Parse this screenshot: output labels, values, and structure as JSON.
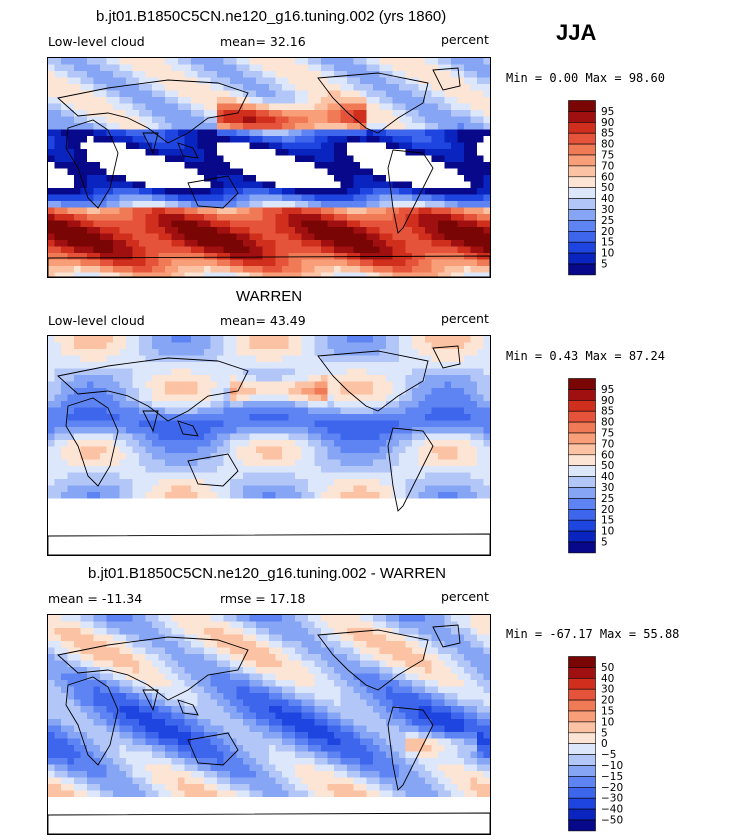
{
  "season": "JJA",
  "panels": [
    {
      "title": "b.jt01.B1850C5CN.ne120_g16.tuning.002 (yrs 1860)",
      "left_label": "Low-level cloud",
      "mid_label": "mean=  32.16",
      "right_label": "percent",
      "minmax": "Min =   0.00 Max =  98.60"
    },
    {
      "title": "WARREN",
      "left_label": "Low-level cloud",
      "mid_label": "mean=  43.49",
      "right_label": "percent",
      "minmax": "Min =   0.43 Max =  87.24"
    },
    {
      "title": "b.jt01.B1850C5CN.ne120_g16.tuning.002 - WARREN",
      "left_label": "mean = -11.34",
      "mid_label": "rmse =  17.18",
      "right_label": "percent",
      "minmax": "Min = -67.17 Max =  55.88"
    }
  ],
  "chart_data": [
    {
      "type": "heatmap",
      "title": "b.jt01.B1850C5CN.ne120_g16.tuning.002 (yrs 1860)",
      "variable": "Low-level cloud",
      "units": "percent",
      "mean": 32.16,
      "min": 0.0,
      "max": 98.6,
      "colorbar_levels": [
        5,
        10,
        15,
        20,
        25,
        30,
        40,
        50,
        60,
        70,
        75,
        80,
        85,
        90,
        95
      ],
      "colorbar_labels": [
        "95",
        "90",
        "85",
        "80",
        "75",
        "70",
        "60",
        "50",
        "40",
        "30",
        "25",
        "20",
        "15",
        "10",
        "5"
      ],
      "colors": [
        "#08088a",
        "#0a24c0",
        "#1f45e0",
        "#3d66ec",
        "#5d84f2",
        "#86a5f5",
        "#b2c6f8",
        "#dde7fb",
        "#fde5d6",
        "#fbc3a4",
        "#f89f7a",
        "#f07a55",
        "#e5543a",
        "#d02f1e",
        "#a11010",
        "#7a0505"
      ]
    },
    {
      "type": "heatmap",
      "title": "WARREN",
      "variable": "Low-level cloud",
      "units": "percent",
      "mean": 43.49,
      "min": 0.43,
      "max": 87.24,
      "colorbar_levels": [
        5,
        10,
        15,
        20,
        25,
        30,
        40,
        50,
        60,
        70,
        75,
        80,
        85,
        90,
        95
      ],
      "colorbar_labels": [
        "95",
        "90",
        "85",
        "80",
        "75",
        "70",
        "60",
        "50",
        "40",
        "30",
        "25",
        "20",
        "15",
        "10",
        "5"
      ],
      "colors": [
        "#08088a",
        "#0a24c0",
        "#1f45e0",
        "#3d66ec",
        "#5d84f2",
        "#86a5f5",
        "#b2c6f8",
        "#dde7fb",
        "#fde5d6",
        "#fbc3a4",
        "#f89f7a",
        "#f07a55",
        "#e5543a",
        "#d02f1e",
        "#a11010",
        "#7a0505"
      ]
    },
    {
      "type": "heatmap",
      "title": "b.jt01.B1850C5CN.ne120_g16.tuning.002 - WARREN",
      "units": "percent",
      "mean": -11.34,
      "rmse": 17.18,
      "min": -67.17,
      "max": 55.88,
      "colorbar_levels": [
        -50,
        -40,
        -30,
        -20,
        -15,
        -10,
        -5,
        0,
        5,
        10,
        15,
        20,
        30,
        40,
        50
      ],
      "colorbar_labels": [
        "50",
        "40",
        "30",
        "20",
        "15",
        "10",
        "5",
        "0",
        "−5",
        "−10",
        "−15",
        "−20",
        "−30",
        "−40",
        "−50"
      ],
      "colors": [
        "#08088a",
        "#0a24c0",
        "#1f45e0",
        "#3d66ec",
        "#5d84f2",
        "#86a5f5",
        "#b2c6f8",
        "#dde7fb",
        "#fde5d6",
        "#fbc3a4",
        "#f89f7a",
        "#f07a55",
        "#e5543a",
        "#d02f1e",
        "#a11010",
        "#7a0505"
      ]
    }
  ]
}
